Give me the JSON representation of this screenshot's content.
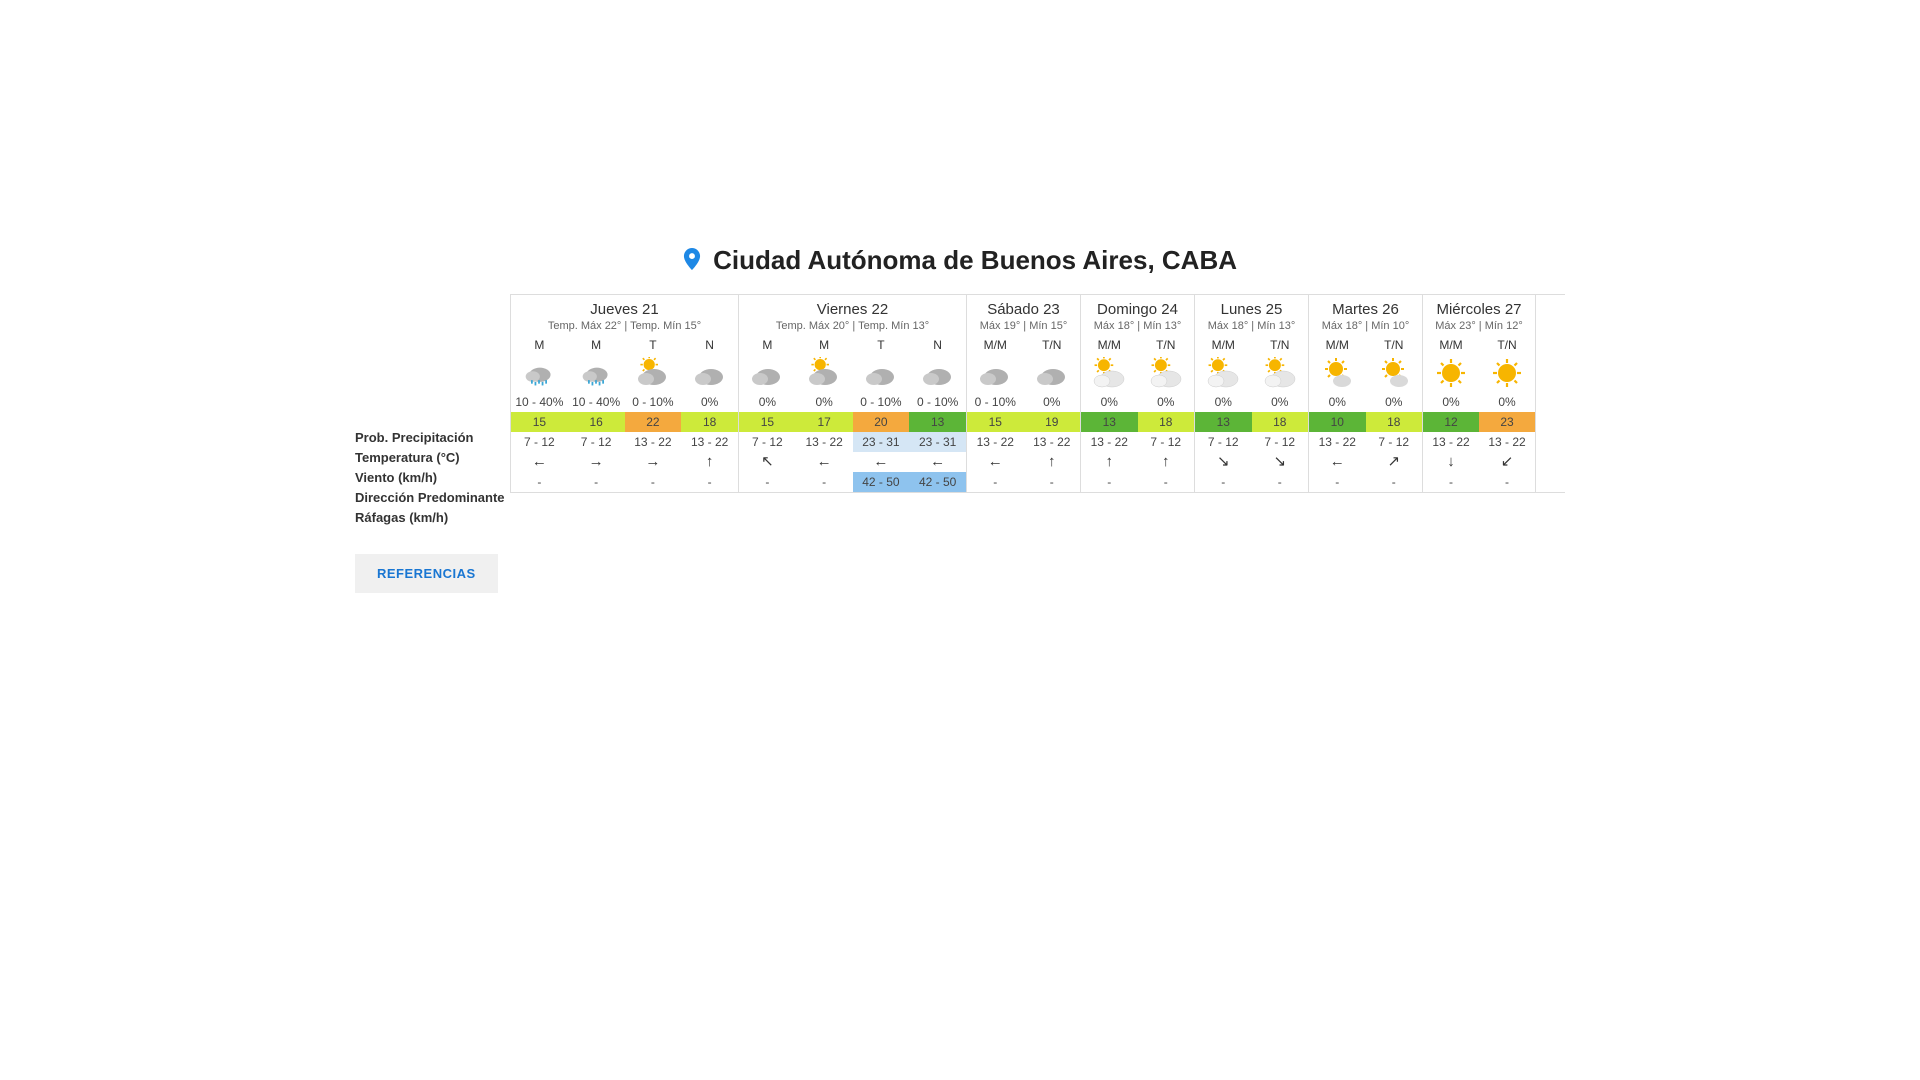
{
  "location": "Ciudad Autónoma de Buenos Aires, CABA",
  "row_labels": {
    "precip": "Prob. Precipitación",
    "temp": "Temperatura (°C)",
    "wind": "Viento (km/h)",
    "dir": "Dirección Predominante",
    "gust": "Ráfagas (km/h)"
  },
  "references_button": "REFERENCIAS",
  "colors": {
    "temp_yellowgreen": "#cdea3a",
    "temp_orange": "#f4a93e",
    "temp_green": "#5cb537",
    "wind_highlight": "#d5e6f5",
    "gust_highlight": "#8ec3ee",
    "border": "#dddddd",
    "text_dark": "#333333",
    "text_light": "#666666",
    "pin": "#1e88e5",
    "btn_bg": "#f0f0f0",
    "btn_text": "#1976d2"
  },
  "period_width_4": 57,
  "period_width_2": 57,
  "days": [
    {
      "name": "Jueves 21",
      "temps_label": "Temp. Máx 22° | Temp. Mín 15°",
      "periods": [
        {
          "label": "M",
          "icon": "rain",
          "precip": "10 - 40%",
          "temp": "15",
          "temp_color": "#cdea3a",
          "wind": "7 - 12",
          "wind_bg": "",
          "dir": "←",
          "gust": "-",
          "gust_bg": ""
        },
        {
          "label": "M",
          "icon": "rain",
          "precip": "10 - 40%",
          "temp": "16",
          "temp_color": "#cdea3a",
          "wind": "7 - 12",
          "wind_bg": "",
          "dir": "→",
          "gust": "-",
          "gust_bg": ""
        },
        {
          "label": "T",
          "icon": "partlycloudy",
          "precip": "0 - 10%",
          "temp": "22",
          "temp_color": "#f4a93e",
          "wind": "13 - 22",
          "wind_bg": "",
          "dir": "→",
          "gust": "-",
          "gust_bg": ""
        },
        {
          "label": "N",
          "icon": "cloudy",
          "precip": "0%",
          "temp": "18",
          "temp_color": "#cdea3a",
          "wind": "13 - 22",
          "wind_bg": "",
          "dir": "↑",
          "gust": "-",
          "gust_bg": ""
        }
      ]
    },
    {
      "name": "Viernes 22",
      "temps_label": "Temp. Máx 20° | Temp. Mín 13°",
      "periods": [
        {
          "label": "M",
          "icon": "cloudy",
          "precip": "0%",
          "temp": "15",
          "temp_color": "#cdea3a",
          "wind": "7 - 12",
          "wind_bg": "",
          "dir": "↖",
          "gust": "-",
          "gust_bg": ""
        },
        {
          "label": "M",
          "icon": "partlycloudy",
          "precip": "0%",
          "temp": "17",
          "temp_color": "#cdea3a",
          "wind": "13 - 22",
          "wind_bg": "",
          "dir": "←",
          "gust": "-",
          "gust_bg": ""
        },
        {
          "label": "T",
          "icon": "cloudy",
          "precip": "0 - 10%",
          "temp": "20",
          "temp_color": "#f4a93e",
          "wind": "23 - 31",
          "wind_bg": "#d5e6f5",
          "dir": "←",
          "gust": "42 - 50",
          "gust_bg": "#8ec3ee"
        },
        {
          "label": "N",
          "icon": "cloudy",
          "precip": "0 - 10%",
          "temp": "13",
          "temp_color": "#5cb537",
          "wind": "23 - 31",
          "wind_bg": "#d5e6f5",
          "dir": "←",
          "gust": "42 - 50",
          "gust_bg": "#8ec3ee"
        }
      ]
    },
    {
      "name": "Sábado 23",
      "temps_label": "Máx 19° | Mín 15°",
      "periods": [
        {
          "label": "M/M",
          "icon": "cloudy",
          "precip": "0 - 10%",
          "temp": "15",
          "temp_color": "#cdea3a",
          "wind": "13 - 22",
          "wind_bg": "",
          "dir": "←",
          "gust": "-",
          "gust_bg": ""
        },
        {
          "label": "T/N",
          "icon": "cloudy",
          "precip": "0%",
          "temp": "19",
          "temp_color": "#cdea3a",
          "wind": "13 - 22",
          "wind_bg": "",
          "dir": "↑",
          "gust": "-",
          "gust_bg": ""
        }
      ]
    },
    {
      "name": "Domingo 24",
      "temps_label": "Máx 18° | Mín 13°",
      "periods": [
        {
          "label": "M/M",
          "icon": "suncloud",
          "precip": "0%",
          "temp": "13",
          "temp_color": "#5cb537",
          "wind": "13 - 22",
          "wind_bg": "",
          "dir": "↑",
          "gust": "-",
          "gust_bg": ""
        },
        {
          "label": "T/N",
          "icon": "suncloud",
          "precip": "0%",
          "temp": "18",
          "temp_color": "#cdea3a",
          "wind": "7 - 12",
          "wind_bg": "",
          "dir": "↑",
          "gust": "-",
          "gust_bg": ""
        }
      ]
    },
    {
      "name": "Lunes 25",
      "temps_label": "Máx 18° | Mín 13°",
      "periods": [
        {
          "label": "M/M",
          "icon": "suncloud",
          "precip": "0%",
          "temp": "13",
          "temp_color": "#5cb537",
          "wind": "7 - 12",
          "wind_bg": "",
          "dir": "↘",
          "gust": "-",
          "gust_bg": ""
        },
        {
          "label": "T/N",
          "icon": "suncloud",
          "precip": "0%",
          "temp": "18",
          "temp_color": "#cdea3a",
          "wind": "7 - 12",
          "wind_bg": "",
          "dir": "↘",
          "gust": "-",
          "gust_bg": ""
        }
      ]
    },
    {
      "name": "Martes 26",
      "temps_label": "Máx 18° | Mín 10°",
      "periods": [
        {
          "label": "M/M",
          "icon": "mostlysunny",
          "precip": "0%",
          "temp": "10",
          "temp_color": "#5cb537",
          "wind": "13 - 22",
          "wind_bg": "",
          "dir": "←",
          "gust": "-",
          "gust_bg": ""
        },
        {
          "label": "T/N",
          "icon": "mostlysunny",
          "precip": "0%",
          "temp": "18",
          "temp_color": "#cdea3a",
          "wind": "7 - 12",
          "wind_bg": "",
          "dir": "↗",
          "gust": "-",
          "gust_bg": ""
        }
      ]
    },
    {
      "name": "Miércoles 27",
      "temps_label": "Máx 23° | Mín 12°",
      "periods": [
        {
          "label": "M/M",
          "icon": "sunny",
          "precip": "0%",
          "temp": "12",
          "temp_color": "#5cb537",
          "wind": "13 - 22",
          "wind_bg": "",
          "dir": "↓",
          "gust": "-",
          "gust_bg": ""
        },
        {
          "label": "T/N",
          "icon": "sunny",
          "precip": "0%",
          "temp": "23",
          "temp_color": "#f4a93e",
          "wind": "13 - 22",
          "wind_bg": "",
          "dir": "↙",
          "gust": "-",
          "gust_bg": ""
        }
      ]
    }
  ]
}
